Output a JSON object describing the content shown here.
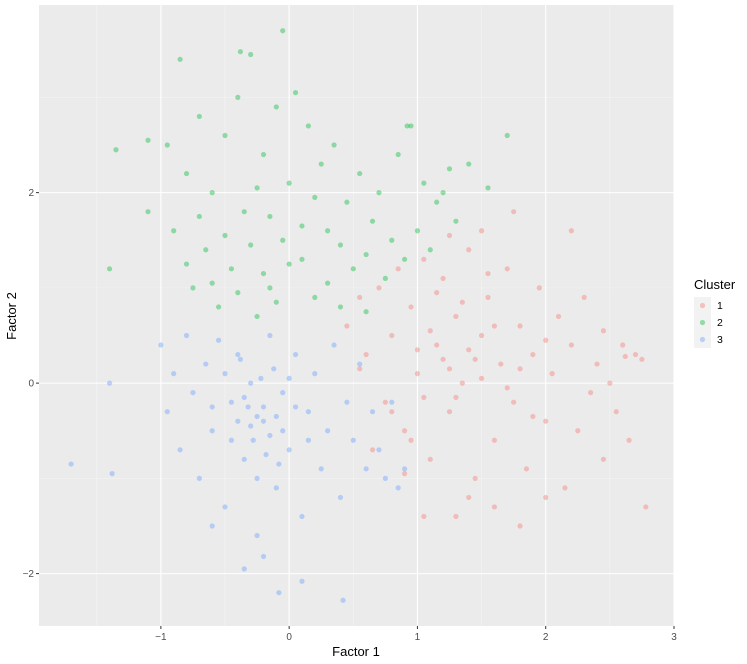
{
  "chart_data": {
    "type": "scatter",
    "title": "",
    "xlabel": "Factor 1",
    "ylabel": "Factor 2",
    "xlim": [
      -1.95,
      3.0
    ],
    "ylim": [
      -2.55,
      3.97
    ],
    "x_ticks": [
      -1,
      0,
      1,
      2,
      3
    ],
    "x_tick_labels": [
      "−1",
      "0",
      "1",
      "2",
      "3"
    ],
    "y_ticks": [
      -2,
      0,
      2
    ],
    "y_tick_labels": [
      "−2",
      "0",
      "2"
    ],
    "grid": true,
    "legend": {
      "title": "Cluster",
      "position": "right"
    },
    "series": [
      {
        "name": "1",
        "color": "#F8766D",
        "points": [
          [
            0.45,
            0.6
          ],
          [
            0.55,
            0.9
          ],
          [
            0.6,
            0.3
          ],
          [
            0.7,
            1.0
          ],
          [
            0.75,
            -0.2
          ],
          [
            0.8,
            0.5
          ],
          [
            0.85,
            1.2
          ],
          [
            0.9,
            -0.5
          ],
          [
            0.95,
            0.8
          ],
          [
            1.0,
            0.1
          ],
          [
            1.05,
            1.3
          ],
          [
            1.1,
            -0.8
          ],
          [
            1.15,
            0.4
          ],
          [
            1.2,
            1.1
          ],
          [
            1.25,
            -0.3
          ],
          [
            1.3,
            0.7
          ],
          [
            1.35,
            0.0
          ],
          [
            1.4,
            1.4
          ],
          [
            1.45,
            -1.0
          ],
          [
            1.5,
            0.5
          ],
          [
            1.55,
            0.9
          ],
          [
            1.6,
            -0.6
          ],
          [
            1.65,
            0.2
          ],
          [
            1.7,
            1.2
          ],
          [
            1.75,
            -0.2
          ],
          [
            1.8,
            0.6
          ],
          [
            1.85,
            -0.9
          ],
          [
            1.9,
            0.3
          ],
          [
            1.95,
            1.0
          ],
          [
            2.0,
            -0.4
          ],
          [
            2.05,
            0.1
          ],
          [
            2.1,
            0.7
          ],
          [
            2.15,
            -1.1
          ],
          [
            2.2,
            0.4
          ],
          [
            2.25,
            -0.5
          ],
          [
            2.3,
            0.9
          ],
          [
            2.35,
            -0.1
          ],
          [
            2.4,
            0.2
          ],
          [
            2.45,
            -0.8
          ],
          [
            2.5,
            0.0
          ],
          [
            2.55,
            -0.3
          ],
          [
            2.6,
            0.4
          ],
          [
            2.65,
            -0.6
          ],
          [
            2.7,
            0.3
          ],
          [
            2.75,
            0.25
          ],
          [
            2.78,
            -1.3
          ],
          [
            2.62,
            0.28
          ],
          [
            2.45,
            0.55
          ],
          [
            1.25,
            1.55
          ],
          [
            1.5,
            1.6
          ],
          [
            1.75,
            1.8
          ],
          [
            2.2,
            1.6
          ],
          [
            1.6,
            -1.3
          ],
          [
            1.8,
            -1.5
          ],
          [
            1.3,
            -1.4
          ],
          [
            1.05,
            -1.4
          ],
          [
            1.4,
            -1.2
          ],
          [
            2.0,
            -1.2
          ],
          [
            0.55,
            0.15
          ],
          [
            0.65,
            -0.7
          ],
          [
            0.9,
            -0.95
          ],
          [
            1.0,
            0.35
          ],
          [
            1.1,
            0.55
          ],
          [
            1.2,
            0.25
          ],
          [
            1.3,
            -0.15
          ],
          [
            1.4,
            0.35
          ],
          [
            1.5,
            0.05
          ],
          [
            1.6,
            0.6
          ],
          [
            1.7,
            -0.05
          ],
          [
            1.8,
            0.15
          ],
          [
            1.9,
            -0.35
          ],
          [
            2.0,
            0.45
          ],
          [
            1.15,
            0.95
          ],
          [
            1.35,
            0.85
          ],
          [
            1.55,
            1.15
          ],
          [
            0.8,
            -0.3
          ],
          [
            0.95,
            -0.6
          ],
          [
            1.05,
            -0.15
          ],
          [
            1.25,
            0.15
          ],
          [
            1.45,
            0.25
          ]
        ]
      },
      {
        "name": "2",
        "color": "#00BA38",
        "points": [
          [
            -0.95,
            2.5
          ],
          [
            -0.9,
            1.6
          ],
          [
            -0.85,
            3.4
          ],
          [
            -0.8,
            2.2
          ],
          [
            -0.75,
            1.0
          ],
          [
            -0.7,
            2.8
          ],
          [
            -0.65,
            1.4
          ],
          [
            -0.6,
            2.0
          ],
          [
            -0.55,
            0.8
          ],
          [
            -0.5,
            2.6
          ],
          [
            -0.45,
            1.2
          ],
          [
            -0.4,
            3.0
          ],
          [
            -0.35,
            1.8
          ],
          [
            -0.3,
            3.45
          ],
          [
            -0.25,
            0.7
          ],
          [
            -0.2,
            2.4
          ],
          [
            -0.15,
            1.0
          ],
          [
            -0.1,
            2.9
          ],
          [
            -0.05,
            1.5
          ],
          [
            0.0,
            2.1
          ],
          [
            0.05,
            3.05
          ],
          [
            0.1,
            1.3
          ],
          [
            0.15,
            2.7
          ],
          [
            0.2,
            0.9
          ],
          [
            0.25,
            2.3
          ],
          [
            0.3,
            1.6
          ],
          [
            0.35,
            2.5
          ],
          [
            0.4,
            0.8
          ],
          [
            0.45,
            1.9
          ],
          [
            0.5,
            1.2
          ],
          [
            0.55,
            2.2
          ],
          [
            0.6,
            0.75
          ],
          [
            0.65,
            1.7
          ],
          [
            0.7,
            2.0
          ],
          [
            0.75,
            1.1
          ],
          [
            0.8,
            1.5
          ],
          [
            0.85,
            2.4
          ],
          [
            0.9,
            1.3
          ],
          [
            0.95,
            2.7
          ],
          [
            1.0,
            1.6
          ],
          [
            1.05,
            2.1
          ],
          [
            1.1,
            1.4
          ],
          [
            1.15,
            1.9
          ],
          [
            1.2,
            2.0
          ],
          [
            1.25,
            2.25
          ],
          [
            1.3,
            1.7
          ],
          [
            1.4,
            2.3
          ],
          [
            1.55,
            2.05
          ],
          [
            1.7,
            2.6
          ],
          [
            -1.35,
            2.45
          ],
          [
            -1.1,
            2.55
          ],
          [
            -1.1,
            1.8
          ],
          [
            -1.4,
            1.2
          ],
          [
            -0.05,
            3.7
          ],
          [
            -0.38,
            3.48
          ],
          [
            0.92,
            2.7
          ],
          [
            -0.6,
            1.05
          ],
          [
            -0.5,
            1.55
          ],
          [
            -0.4,
            0.95
          ],
          [
            -0.3,
            1.45
          ],
          [
            -0.2,
            1.15
          ],
          [
            -0.1,
            0.85
          ],
          [
            0.0,
            1.25
          ],
          [
            0.1,
            1.65
          ],
          [
            0.2,
            1.95
          ],
          [
            0.3,
            1.05
          ],
          [
            -0.7,
            1.75
          ],
          [
            -0.8,
            1.25
          ],
          [
            -0.25,
            2.05
          ],
          [
            -0.15,
            1.75
          ],
          [
            0.4,
            1.45
          ],
          [
            0.6,
            1.35
          ]
        ]
      },
      {
        "name": "3",
        "color": "#619CFF",
        "points": [
          [
            -1.0,
            0.4
          ],
          [
            -0.95,
            -0.3
          ],
          [
            -0.9,
            0.1
          ],
          [
            -0.85,
            -0.7
          ],
          [
            -0.8,
            0.5
          ],
          [
            -0.75,
            -0.1
          ],
          [
            -0.7,
            -1.0
          ],
          [
            -0.65,
            0.2
          ],
          [
            -0.6,
            -0.5
          ],
          [
            -0.55,
            0.45
          ],
          [
            -0.5,
            -1.3
          ],
          [
            -0.45,
            -0.2
          ],
          [
            -0.4,
            0.3
          ],
          [
            -0.35,
            -0.8
          ],
          [
            -0.3,
            0.0
          ],
          [
            -0.25,
            -1.6
          ],
          [
            -0.2,
            -0.4
          ],
          [
            -0.15,
            0.5
          ],
          [
            -0.1,
            -1.1
          ],
          [
            -0.05,
            -0.1
          ],
          [
            0.0,
            -0.7
          ],
          [
            0.05,
            0.3
          ],
          [
            0.1,
            -1.4
          ],
          [
            0.15,
            -0.3
          ],
          [
            0.2,
            0.1
          ],
          [
            0.25,
            -0.9
          ],
          [
            0.3,
            -0.5
          ],
          [
            0.35,
            0.4
          ],
          [
            0.4,
            -1.2
          ],
          [
            0.45,
            -0.2
          ],
          [
            0.5,
            -0.6
          ],
          [
            0.55,
            0.2
          ],
          [
            0.6,
            -0.9
          ],
          [
            0.65,
            -0.3
          ],
          [
            0.7,
            -0.7
          ],
          [
            0.75,
            -1.0
          ],
          [
            0.8,
            -0.2
          ],
          [
            0.85,
            -1.1
          ],
          [
            0.9,
            -0.9
          ],
          [
            -1.7,
            -0.85
          ],
          [
            -1.38,
            -0.95
          ],
          [
            -1.4,
            0.0
          ],
          [
            -0.35,
            -1.95
          ],
          [
            -0.08,
            -2.2
          ],
          [
            0.42,
            -2.28
          ],
          [
            0.1,
            -2.08
          ],
          [
            -0.2,
            -1.82
          ],
          [
            -0.6,
            -1.5
          ],
          [
            -0.25,
            -0.35
          ],
          [
            -0.2,
            -0.25
          ],
          [
            -0.3,
            -0.45
          ],
          [
            -0.15,
            -0.55
          ],
          [
            -0.35,
            -0.15
          ],
          [
            -0.1,
            -0.35
          ],
          [
            -0.28,
            -0.6
          ],
          [
            -0.22,
            0.05
          ],
          [
            -0.4,
            -0.4
          ],
          [
            -0.05,
            -0.5
          ],
          [
            -0.18,
            -0.75
          ],
          [
            -0.32,
            -0.25
          ],
          [
            -0.12,
            0.15
          ],
          [
            -0.45,
            -0.6
          ],
          [
            -0.08,
            -0.85
          ],
          [
            -0.5,
            0.1
          ],
          [
            0.05,
            -0.25
          ],
          [
            -0.6,
            -0.25
          ],
          [
            0.15,
            -0.6
          ],
          [
            -0.25,
            -1.0
          ],
          [
            -0.38,
            0.25
          ],
          [
            0.0,
            0.05
          ]
        ]
      }
    ]
  }
}
